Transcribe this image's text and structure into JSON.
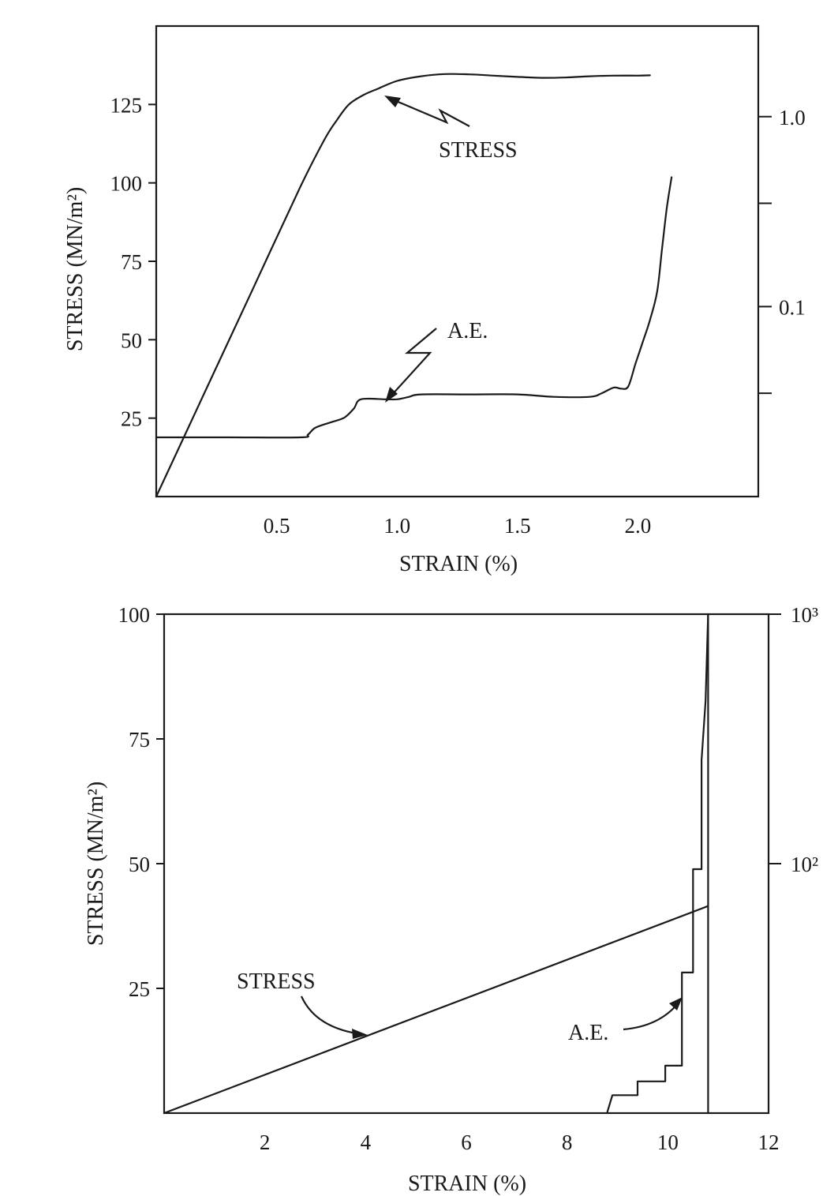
{
  "chart_data": [
    {
      "type": "line",
      "xlabel": "STRAIN (%)",
      "ylabel": "STRESS  (MN/m²)",
      "xlim": [
        0,
        2.5
      ],
      "ylim": [
        0,
        150
      ],
      "x_ticks": [
        {
          "value": 0.5,
          "label": "0.5"
        },
        {
          "value": 1.0,
          "label": "1.0"
        },
        {
          "value": 1.5,
          "label": "1.5"
        },
        {
          "value": 2.0,
          "label": "2.0"
        }
      ],
      "y_ticks": [
        {
          "value": 25,
          "label": "25"
        },
        {
          "value": 50,
          "label": "50"
        },
        {
          "value": 75,
          "label": "75"
        },
        {
          "value": 100,
          "label": "100"
        },
        {
          "value": 125,
          "label": "125"
        }
      ],
      "y2_scale": "log",
      "y2_ticks": [
        {
          "value": 1.0,
          "label": "1.0"
        },
        {
          "value": 0.35,
          "label": ""
        },
        {
          "value": 0.1,
          "label": "0.1"
        },
        {
          "value": 0.035,
          "label": ""
        }
      ],
      "grid": false,
      "series": [
        {
          "name": "STRESS",
          "axis": "left",
          "x": [
            0.0,
            0.2,
            0.4,
            0.6,
            0.7,
            0.75,
            0.8,
            0.86,
            0.92,
            1.0,
            1.1,
            1.2,
            1.3,
            1.4,
            1.5,
            1.6,
            1.7,
            1.8,
            1.9,
            2.0,
            2.05
          ],
          "y": [
            0,
            33,
            66,
            99,
            114,
            120,
            125,
            128,
            130,
            132.5,
            134,
            134.7,
            134.6,
            134.2,
            133.8,
            133.5,
            133.6,
            134,
            134.2,
            134.2,
            134.3
          ]
        },
        {
          "name": "A.E.",
          "axis": "right",
          "x": [
            0.0,
            0.3,
            0.6,
            0.63,
            0.66,
            0.72,
            0.78,
            0.82,
            0.85,
            0.95,
            1.0,
            1.05,
            1.1,
            1.3,
            1.5,
            1.65,
            1.8,
            1.85,
            1.9,
            1.93,
            1.96,
            1.99,
            2.02,
            2.05,
            2.08,
            2.1,
            2.12,
            2.14
          ],
          "y": [
            0.0205,
            0.0205,
            0.0205,
            0.0212,
            0.023,
            0.0245,
            0.026,
            0.029,
            0.0325,
            0.0325,
            0.0325,
            0.0335,
            0.0345,
            0.0345,
            0.0345,
            0.0335,
            0.0335,
            0.035,
            0.0375,
            0.037,
            0.038,
            0.05,
            0.065,
            0.085,
            0.12,
            0.2,
            0.33,
            0.48
          ]
        }
      ],
      "annotations": [
        {
          "text": "STRESS",
          "x": 1.0,
          "y": 128
        },
        {
          "text": "A.E.",
          "x": 1.22,
          "y": 52
        }
      ]
    },
    {
      "type": "line",
      "xlabel": "STRAIN (%)",
      "ylabel": "STRESS (MN/m²)",
      "xlim": [
        0,
        12
      ],
      "ylim": [
        0,
        100
      ],
      "x_ticks": [
        {
          "value": 2,
          "label": "2"
        },
        {
          "value": 4,
          "label": "4"
        },
        {
          "value": 6,
          "label": "6"
        },
        {
          "value": 8,
          "label": "8"
        },
        {
          "value": 10,
          "label": "10"
        },
        {
          "value": 12,
          "label": "12"
        }
      ],
      "y_ticks": [
        {
          "value": 25,
          "label": "25"
        },
        {
          "value": 50,
          "label": "50"
        },
        {
          "value": 75,
          "label": "75"
        },
        {
          "value": 100,
          "label": "100"
        }
      ],
      "y2_scale": "log",
      "y2_ticks": [
        {
          "value": 1000,
          "label": "10³"
        },
        {
          "value": 100,
          "label": "10²"
        }
      ],
      "grid": false,
      "vertical_line": 10.8,
      "series": [
        {
          "name": "STRESS",
          "axis": "left",
          "x": [
            0,
            10.8
          ],
          "y": [
            0,
            41.5
          ]
        },
        {
          "name": "A.E.",
          "axis": "right",
          "x": [
            8.8,
            8.9,
            9.4,
            9.4,
            9.95,
            9.95,
            10.28,
            10.28,
            10.5,
            10.5,
            10.67,
            10.67,
            10.75,
            10.8
          ],
          "y": [
            10.1,
            11.8,
            11.8,
            13.4,
            13.4,
            15.5,
            15.5,
            36.6,
            36.6,
            95,
            95,
            260,
            450,
            1000
          ]
        }
      ],
      "annotations": [
        {
          "text": "STRESS",
          "x": 2.2,
          "y": 26
        },
        {
          "text": "A.E.",
          "x": 8.2,
          "y": 16
        }
      ]
    }
  ]
}
